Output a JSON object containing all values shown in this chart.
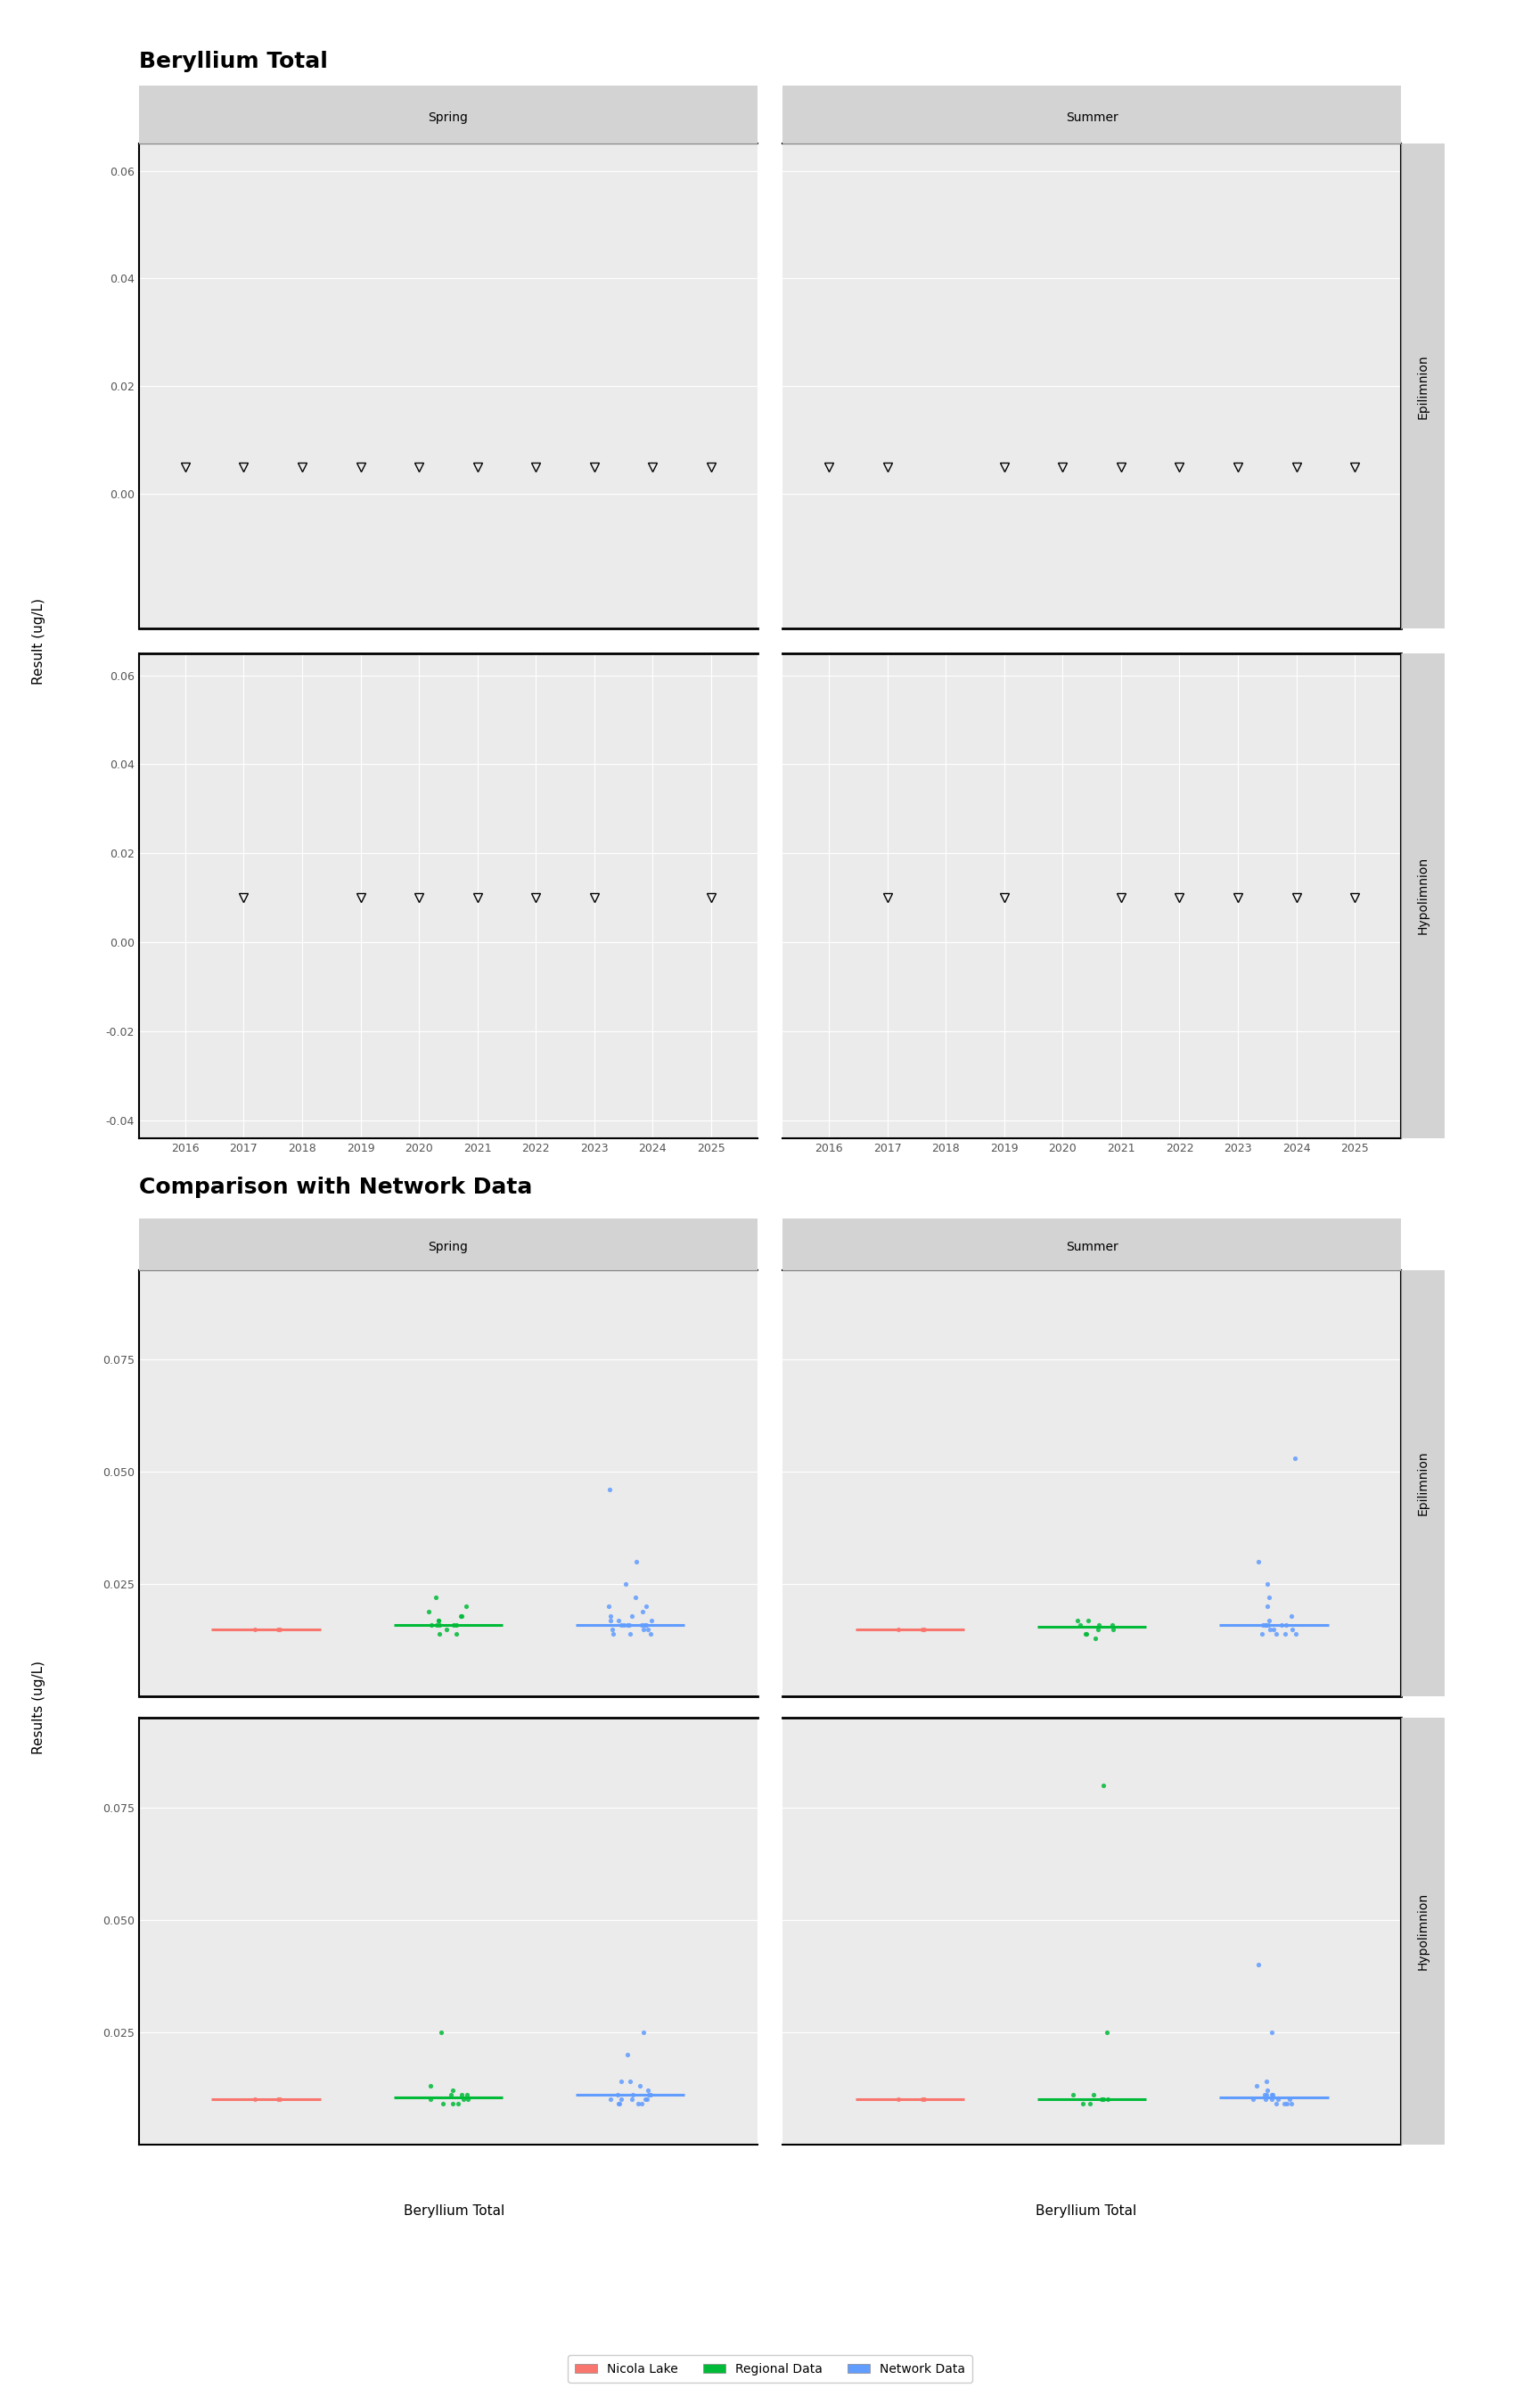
{
  "title1": "Beryllium Total",
  "title2": "Comparison with Network Data",
  "ylabel1": "Result (ug/L)",
  "ylabel2": "Results (ug/L)",
  "xlabel2": "Beryllium Total",
  "seasons": [
    "Spring",
    "Summer"
  ],
  "strata": [
    "Epilimnion",
    "Hypolimnion"
  ],
  "years_spring_epi": [
    2016,
    2017,
    2018,
    2019,
    2020,
    2021,
    2022,
    2023,
    2024,
    2025
  ],
  "years_summer_epi": [
    2016,
    2017,
    2019,
    2020,
    2021,
    2022,
    2023,
    2024,
    2025
  ],
  "triangle_val_epi": 0.005,
  "years_spring_hypo": [
    2017,
    2019,
    2020,
    2021,
    2022,
    2023,
    2025
  ],
  "years_summer_hypo": [
    2017,
    2019,
    2021,
    2022,
    2023,
    2024,
    2025
  ],
  "triangle_val_hypo": 0.01,
  "epi_ylim": [
    -0.025,
    0.065
  ],
  "epi_yticks": [
    0.0,
    0.02,
    0.04,
    0.06
  ],
  "hypo_ylim": [
    -0.044,
    0.065
  ],
  "hypo_yticks": [
    0.06,
    0.04,
    0.02,
    0.0,
    -0.02,
    -0.04
  ],
  "xticks": [
    2016,
    2017,
    2018,
    2019,
    2020,
    2021,
    2022,
    2023,
    2024,
    2025
  ],
  "xlim": [
    2015.2,
    2025.8
  ],
  "comp_epi_ylim": [
    0.0,
    0.095
  ],
  "comp_hypo_ylim": [
    0.0,
    0.095
  ],
  "comp_yticks": [
    0.025,
    0.05,
    0.075
  ],
  "nicola_color": "#F8766D",
  "regional_color": "#00BA38",
  "network_color": "#619CFF",
  "panel_bg": "#EBEBEB",
  "panel_header_color": "#D3D3D3",
  "grid_color": "#FFFFFF",
  "spine_color": "#333333",
  "tick_color": "#555555",
  "title_fontsize": 18,
  "axis_label_fontsize": 11,
  "tick_fontsize": 9,
  "panel_label_fontsize": 10,
  "header_fontsize": 10,
  "legend_fontsize": 10,
  "comp_spring_epi_nicola": [
    0.015,
    0.015,
    0.015
  ],
  "comp_spring_epi_regional": [
    0.015,
    0.014,
    0.016,
    0.017,
    0.018,
    0.016,
    0.016,
    0.017,
    0.014,
    0.016,
    0.018,
    0.019,
    0.02,
    0.022,
    0.016
  ],
  "comp_spring_epi_network": [
    0.015,
    0.014,
    0.016,
    0.017,
    0.018,
    0.016,
    0.016,
    0.017,
    0.014,
    0.016,
    0.018,
    0.019,
    0.02,
    0.022,
    0.016,
    0.015,
    0.017,
    0.014,
    0.016,
    0.02,
    0.025,
    0.03,
    0.046,
    0.015,
    0.016
  ],
  "comp_summer_epi_nicola": [
    0.015,
    0.015,
    0.015
  ],
  "comp_summer_epi_regional": [
    0.015,
    0.014,
    0.016,
    0.017,
    0.016,
    0.014,
    0.015,
    0.016,
    0.013,
    0.017
  ],
  "comp_summer_epi_network": [
    0.015,
    0.014,
    0.016,
    0.017,
    0.016,
    0.014,
    0.015,
    0.016,
    0.014,
    0.016,
    0.02,
    0.025,
    0.03,
    0.053,
    0.015,
    0.014,
    0.016,
    0.018,
    0.016,
    0.022
  ],
  "comp_spring_hypo_nicola": [
    0.01,
    0.01,
    0.01
  ],
  "comp_spring_hypo_regional": [
    0.01,
    0.009,
    0.011,
    0.01,
    0.009,
    0.011,
    0.01,
    0.011,
    0.009,
    0.012,
    0.013,
    0.025
  ],
  "comp_spring_hypo_network": [
    0.01,
    0.009,
    0.011,
    0.01,
    0.009,
    0.011,
    0.01,
    0.011,
    0.009,
    0.012,
    0.013,
    0.014,
    0.02,
    0.025,
    0.01,
    0.009,
    0.011,
    0.01,
    0.014
  ],
  "comp_summer_hypo_nicola": [
    0.01,
    0.01,
    0.01
  ],
  "comp_summer_hypo_regional": [
    0.01,
    0.009,
    0.011,
    0.01,
    0.009,
    0.011,
    0.01,
    0.025,
    0.08
  ],
  "comp_summer_hypo_network": [
    0.01,
    0.009,
    0.011,
    0.01,
    0.009,
    0.011,
    0.01,
    0.011,
    0.009,
    0.012,
    0.013,
    0.04,
    0.01,
    0.009,
    0.011,
    0.01,
    0.014,
    0.025
  ]
}
